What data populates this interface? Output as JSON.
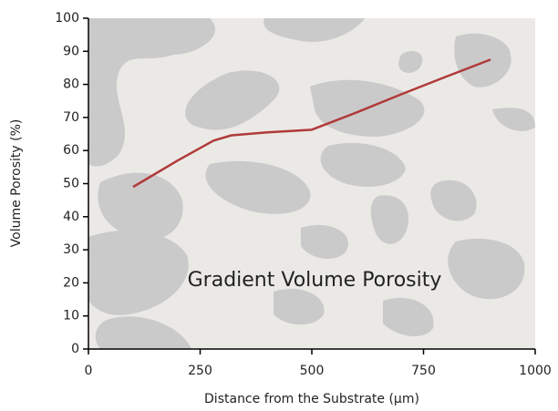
{
  "chart_data": {
    "type": "line",
    "annotation": "Gradient Volume Porosity",
    "x_label": "Distance from the Substrate (μm)",
    "y_label": "Volume Porosity (%)",
    "x": [
      100,
      200,
      280,
      320,
      400,
      500,
      600,
      700,
      800,
      900
    ],
    "values": [
      49,
      57,
      63,
      64.6,
      65.5,
      66.3,
      71.5,
      77,
      82.3,
      87.5
    ],
    "color": "#b03a3a",
    "xlim": [
      0,
      1000
    ],
    "xticks": [
      0,
      250,
      500,
      750,
      1000
    ],
    "ylim": [
      0,
      100
    ],
    "yticks": [
      0,
      10,
      20,
      30,
      40,
      50,
      60,
      70,
      80,
      90,
      100
    ]
  }
}
